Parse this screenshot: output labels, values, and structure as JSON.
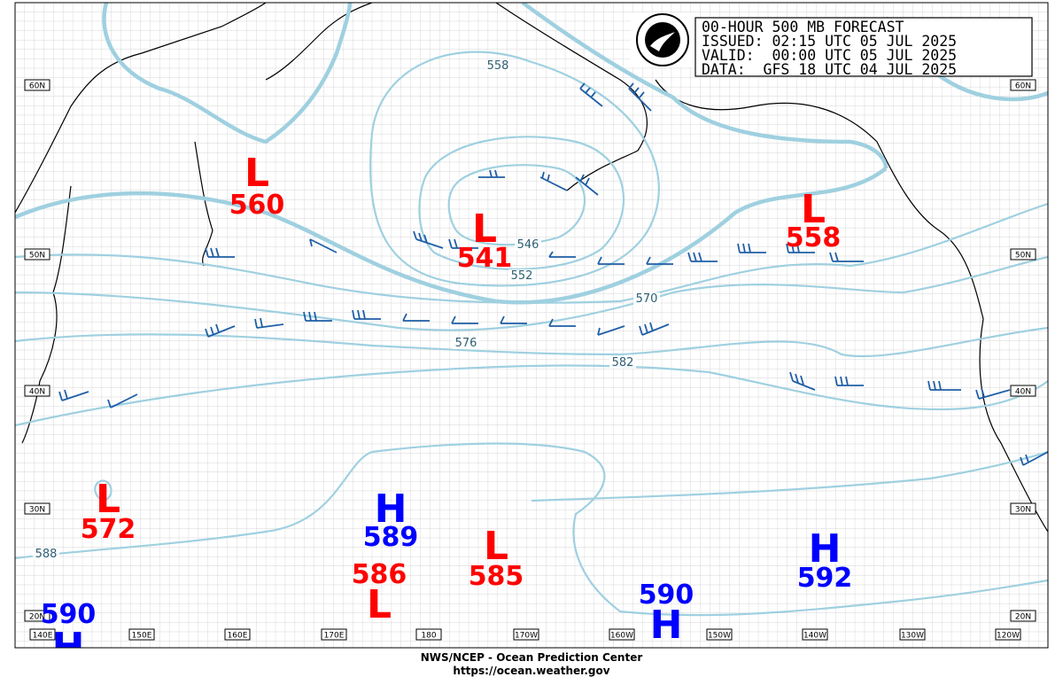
{
  "header": {
    "lines": [
      "00-HOUR 500 MB FORECAST",
      "ISSUED: 02:15 UTC 05 JUL 2025",
      "VALID:  00:00 UTC 05 JUL 2025",
      "DATA:  GFS 18 UTC 04 JUL 2025"
    ]
  },
  "latitudes": [
    "60N",
    "50N",
    "40N",
    "30N",
    "20N"
  ],
  "longitudes": [
    "140E",
    "150E",
    "160E",
    "170E",
    "180",
    "170W",
    "160W",
    "150W",
    "140W",
    "130W",
    "120W"
  ],
  "contour_labels": [
    "558",
    "546",
    "552",
    "570",
    "576",
    "582",
    "588"
  ],
  "centers": [
    {
      "letter": "L",
      "value": "560"
    },
    {
      "letter": "L",
      "value": "541"
    },
    {
      "letter": "L",
      "value": "558"
    },
    {
      "letter": "L",
      "value": "572"
    },
    {
      "letter": "H",
      "value": "589"
    },
    {
      "letter": "L",
      "value": "586"
    },
    {
      "letter": "L",
      "value": "585"
    },
    {
      "letter": "H",
      "value": "590"
    },
    {
      "letter": "H",
      "value": "592"
    },
    {
      "letter": "H",
      "value": "590"
    }
  ],
  "footer": {
    "lines": [
      "NWS/NCEP - Ocean Prediction Center",
      "https://ocean.weather.gov"
    ]
  }
}
